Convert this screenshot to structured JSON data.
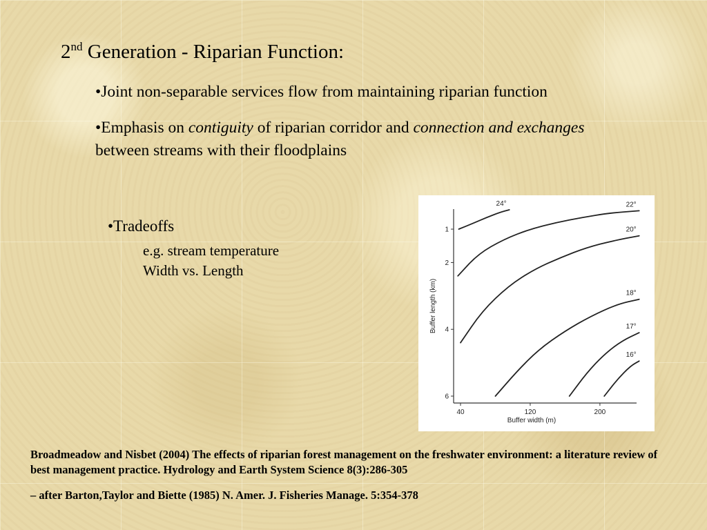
{
  "slide": {
    "title_num": "2",
    "title_sup": "nd",
    "title_rest": " Generation - Riparian Function:",
    "bullet1": "•Joint non-separable services flow from maintaining riparian function",
    "bullet2": {
      "p1": "•Emphasis on ",
      "i1": "contiguity",
      "p2": " of riparian corridor and ",
      "i2": "connection and exchanges",
      "p3": " between streams with their floodplains"
    },
    "tradeoffs": "•Tradeoffs",
    "sub1": "e.g. stream temperature",
    "sub2": "Width vs. Length",
    "ref1": "Broadmeadow and Nisbet (2004) The effects of riparian forest management on the freshwater environment: a literature review of best management practice.  Hydrology and Earth System Science 8(3):286-305",
    "ref2": "– after Barton,Taylor and Biette (1985) N. Amer. J. Fisheries Manage. 5:354-378"
  },
  "chart_data": {
    "type": "line",
    "xlabel": "Buffer width (m)",
    "ylabel": "Buffer length (km)",
    "xticks": [
      40,
      120,
      200
    ],
    "yticks": [
      1,
      2,
      4,
      6
    ],
    "xlim": [
      40,
      250
    ],
    "ylim": [
      0.4,
      6
    ],
    "y_reversed": true,
    "series": [
      {
        "name": "24°",
        "x": [
          38,
          55,
          70,
          85,
          96
        ],
        "y": [
          1.0,
          0.82,
          0.65,
          0.5,
          0.42
        ]
      },
      {
        "name": "22°",
        "x": [
          37,
          60,
          90,
          120,
          150,
          180,
          210,
          245
        ],
        "y": [
          2.4,
          1.75,
          1.3,
          1.0,
          0.8,
          0.65,
          0.52,
          0.45
        ]
      },
      {
        "name": "20°",
        "x": [
          40,
          65,
          95,
          125,
          155,
          185,
          215,
          245
        ],
        "y": [
          4.4,
          3.45,
          2.7,
          2.2,
          1.85,
          1.55,
          1.35,
          1.2
        ]
      },
      {
        "name": "18°",
        "x": [
          80,
          105,
          130,
          160,
          190,
          220,
          245
        ],
        "y": [
          6.0,
          5.25,
          4.6,
          4.05,
          3.6,
          3.25,
          3.1
        ]
      },
      {
        "name": "17°",
        "x": [
          165,
          185,
          205,
          225,
          245
        ],
        "y": [
          6.0,
          5.3,
          4.75,
          4.35,
          4.1
        ]
      },
      {
        "name": "16°",
        "x": [
          205,
          220,
          235,
          245
        ],
        "y": [
          6.0,
          5.5,
          5.1,
          4.95
        ]
      }
    ]
  }
}
